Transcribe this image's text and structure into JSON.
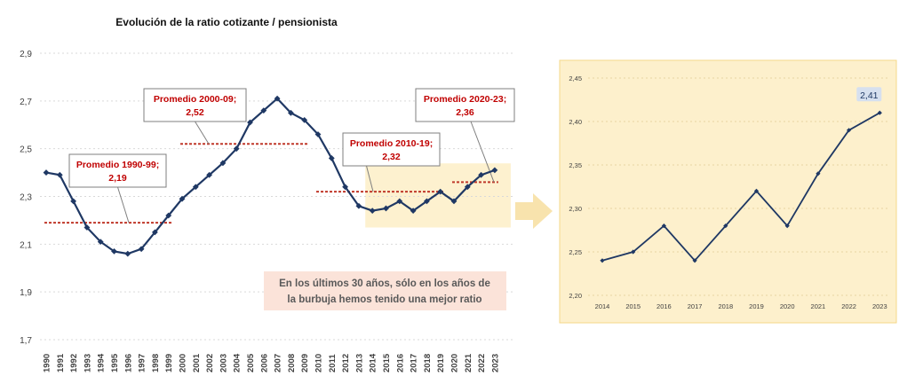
{
  "chart_data": [
    {
      "type": "line",
      "title": "Evolución de la ratio cotizante / pensionista",
      "xlabel": "",
      "ylabel": "",
      "ylim": [
        1.7,
        2.9
      ],
      "yticks": [
        "1,7",
        "1,9",
        "2,1",
        "2,3",
        "2,5",
        "2,7",
        "2,9"
      ],
      "grid": true,
      "categories": [
        "1990",
        "1991",
        "1992",
        "1993",
        "1994",
        "1995",
        "1996",
        "1997",
        "1998",
        "1999",
        "2000",
        "2001",
        "2002",
        "2003",
        "2004",
        "2005",
        "2006",
        "2007",
        "2008",
        "2009",
        "2010",
        "2011",
        "2012",
        "2013",
        "2014",
        "2015",
        "2016",
        "2017",
        "2018",
        "2019",
        "2020",
        "2021",
        "2022",
        "2023"
      ],
      "series": [
        {
          "values": [
            2.4,
            2.39,
            2.28,
            2.17,
            2.11,
            2.07,
            2.06,
            2.08,
            2.15,
            2.22,
            2.29,
            2.34,
            2.39,
            2.44,
            2.5,
            2.61,
            2.66,
            2.71,
            2.65,
            2.62,
            2.56,
            2.46,
            2.34,
            2.26,
            2.24,
            2.25,
            2.28,
            2.24,
            2.28,
            2.32,
            2.28,
            2.34,
            2.39,
            2.41
          ]
        }
      ],
      "averages": [
        {
          "label": "Promedio 1990-99;",
          "value_label": "2,19",
          "value": 2.19,
          "from": "1990",
          "to": "1999"
        },
        {
          "label": "Promedio 2000-09;",
          "value_label": "2,52",
          "value": 2.52,
          "from": "2000",
          "to": "2009"
        },
        {
          "label": "Promedio 2010-19;",
          "value_label": "2,32",
          "value": 2.32,
          "from": "2010",
          "to": "2019"
        },
        {
          "label": "Promedio 2020-23;",
          "value_label": "2,36",
          "value": 2.36,
          "from": "2020",
          "to": "2023"
        }
      ],
      "annotation": [
        "En los últimos 30 años, sólo en los años de",
        "la burbuja hemos tenido una mejor ratio"
      ]
    },
    {
      "type": "line",
      "title": "",
      "xlabel": "",
      "ylabel": "",
      "ylim": [
        2.2,
        2.45
      ],
      "yticks": [
        "2,20",
        "2,25",
        "2,30",
        "2,35",
        "2,40",
        "2,45"
      ],
      "grid": true,
      "categories": [
        "2014",
        "2015",
        "2016",
        "2017",
        "2018",
        "2019",
        "2020",
        "2021",
        "2022",
        "2023"
      ],
      "series": [
        {
          "values": [
            2.24,
            2.25,
            2.28,
            2.24,
            2.28,
            2.32,
            2.28,
            2.34,
            2.39,
            2.41
          ]
        }
      ],
      "data_labels": [
        {
          "category": "2023",
          "text": "2,41"
        }
      ]
    }
  ],
  "colors": {
    "line": "#1f3864",
    "average_line": "#c0392b",
    "label_text": "#c00000",
    "highlight": "#fdf1cf",
    "zoom_background": "#fdf0cc",
    "zoom_border": "#f5d88a",
    "arrow": "#f8e3ad",
    "note_background": "#fbe3d9",
    "value_badge": "#d6e0ef",
    "grid": "#d9d9d9",
    "axis_text": "#404040"
  }
}
